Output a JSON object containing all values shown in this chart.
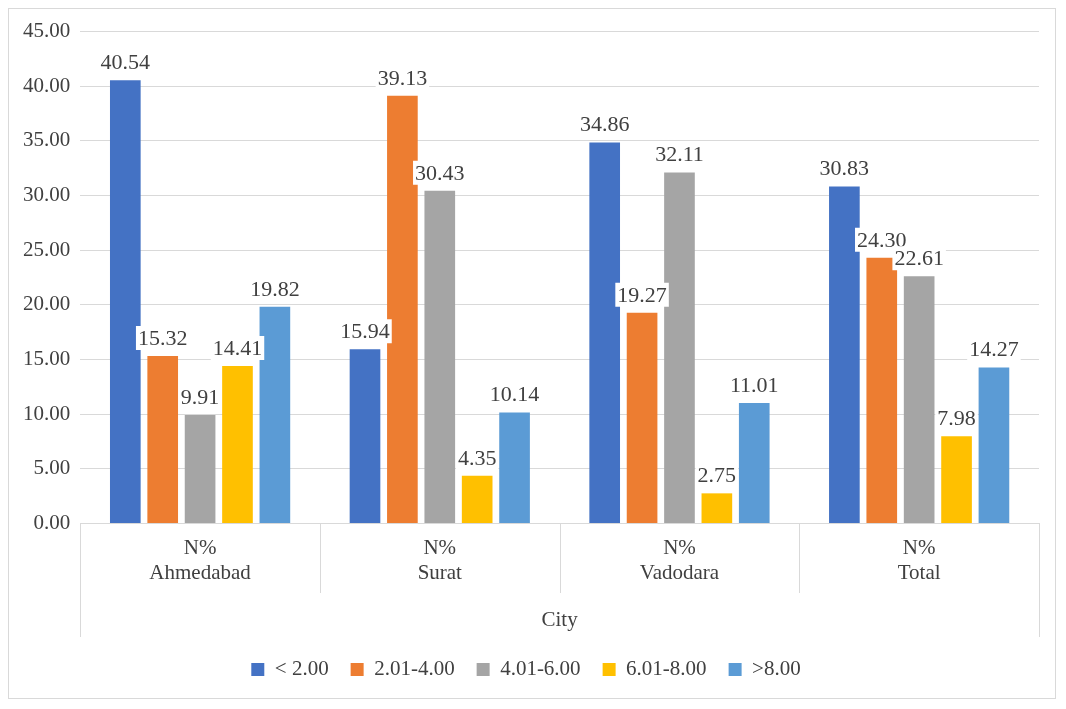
{
  "chart_data": {
    "type": "bar",
    "xlabel": "City",
    "categories": [
      "N%\nAhmedabad",
      "N%\nSurat",
      "N%\nVadodara",
      "N%\nTotal"
    ],
    "series": [
      {
        "name": "< 2.00",
        "color": "#4472c4",
        "values": [
          40.54,
          15.94,
          34.86,
          30.83
        ]
      },
      {
        "name": "2.01-4.00",
        "color": "#ed7d31",
        "values": [
          15.32,
          39.13,
          19.27,
          24.3
        ]
      },
      {
        "name": "4.01-6.00",
        "color": "#a5a5a5",
        "values": [
          9.91,
          30.43,
          32.11,
          22.61
        ]
      },
      {
        "name": "6.01-8.00",
        "color": "#ffc000",
        "values": [
          14.41,
          4.35,
          2.75,
          7.98
        ]
      },
      {
        "name": ">8.00",
        "color": "#5b9bd5",
        "values": [
          19.82,
          10.14,
          11.01,
          14.27
        ]
      }
    ],
    "value_labels": [
      [
        "40.54",
        "15.94",
        "34.86",
        "30.83"
      ],
      [
        "15.32",
        "39.13",
        "19.27",
        "24.30"
      ],
      [
        "9.91",
        "30.43",
        "32.11",
        "22.61"
      ],
      [
        "14.41",
        "4.35",
        "2.75",
        "7.98"
      ],
      [
        "19.82",
        "10.14",
        "11.01",
        "14.27"
      ]
    ],
    "ylim": [
      0,
      45
    ],
    "yticks": [
      {
        "value": 0,
        "label": "0.00"
      },
      {
        "value": 5,
        "label": "5.00"
      },
      {
        "value": 10,
        "label": "10.00"
      },
      {
        "value": 15,
        "label": "15.00"
      },
      {
        "value": 20,
        "label": "20.00"
      },
      {
        "value": 25,
        "label": "25.00"
      },
      {
        "value": 30,
        "label": "30.00"
      },
      {
        "value": 35,
        "label": "35.00"
      },
      {
        "value": 40,
        "label": "40.00"
      },
      {
        "value": 45,
        "label": "45.00"
      }
    ],
    "grid": "y",
    "legend": "bottom"
  }
}
